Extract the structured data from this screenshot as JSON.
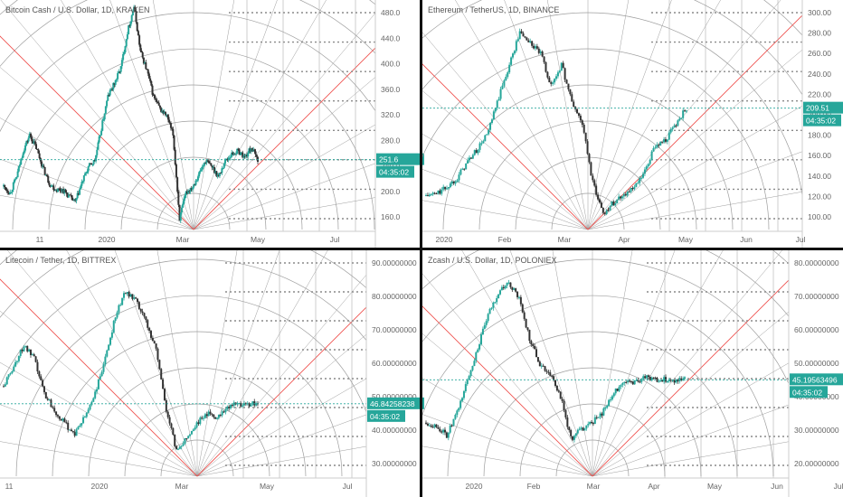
{
  "panels": [
    {
      "title": "Bitcoin Cash / U.S. Dollar, 1D, KRAKEN",
      "y_ticks": [
        "480.0",
        "440.0",
        "400.0",
        "360.0",
        "320.0",
        "280.0",
        "240.0",
        "200.0",
        "160.0"
      ],
      "x_ticks": [
        "11",
        "2020",
        "Mar",
        "May",
        "Jul"
      ],
      "last_price": "251.6",
      "countdown": "04:35:02"
    },
    {
      "title": "Ethereum / TetherUS, 1D, BINANCE",
      "y_ticks": [
        "300.00",
        "280.00",
        "260.00",
        "240.00",
        "220.00",
        "200.00",
        "180.00",
        "160.00",
        "140.00",
        "120.00",
        "100.00"
      ],
      "x_ticks": [
        "2020",
        "Feb",
        "Mar",
        "Apr",
        "May",
        "Jun",
        "Jul"
      ],
      "last_price": "209.51",
      "countdown": "04:35:02"
    },
    {
      "title": "Litecoin / Tether, 1D, BITTREX",
      "y_ticks": [
        "90.00000000",
        "80.00000000",
        "70.00000000",
        "60.00000000",
        "50.00000000",
        "40.00000000",
        "30.00000000"
      ],
      "x_ticks": [
        "11",
        "2020",
        "Mar",
        "May",
        "Jul"
      ],
      "last_price": "46.84258238",
      "countdown": "04:35:02"
    },
    {
      "title": "Zcash / U.S. Dollar, 1D, POLONIEX",
      "y_ticks": [
        "80.00000000",
        "70.00000000",
        "60.00000000",
        "50.00000000",
        "40.00000000",
        "30.00000000",
        "20.00000000"
      ],
      "x_ticks": [
        "2020",
        "Feb",
        "Mar",
        "Apr",
        "May",
        "Jun",
        "Jul"
      ],
      "last_price": "45.19563496",
      "countdown": "04:35:02"
    }
  ],
  "colors": {
    "up": "#26a69a",
    "down": "#333333",
    "fan": "#9e9e9e",
    "diagonal": "#ef5350",
    "dotted": "#8a8a8a",
    "price_tag": "#26a69a"
  },
  "chart_data": [
    {
      "type": "line",
      "title": "Bitcoin Cash / U.S. Dollar, 1D, KRAKEN",
      "series": [
        {
          "name": "",
          "x": [
            0,
            5,
            10,
            15,
            20,
            25,
            30,
            35,
            40,
            45,
            50,
            55,
            60,
            65,
            70,
            75,
            80,
            85,
            90,
            95,
            100,
            105,
            110,
            115,
            120,
            125,
            130,
            135,
            140,
            145,
            150,
            155,
            160,
            165,
            170,
            175,
            180,
            185,
            190,
            195,
            200,
            205,
            210,
            215,
            220,
            225,
            230,
            235,
            240,
            245,
            250,
            255,
            260,
            265,
            270,
            275,
            280,
            285
          ],
          "values": [
            210,
            200,
            225,
            265,
            290,
            270,
            240,
            215,
            205,
            205,
            195,
            185,
            215,
            240,
            250,
            300,
            350,
            370,
            395,
            450,
            490,
            420,
            390,
            350,
            330,
            320,
            290,
            160,
            200,
            210,
            230,
            250,
            240,
            225,
            250,
            260,
            265,
            255,
            270,
            251.6,
            251.6,
            251.6,
            251.6,
            251.6,
            251.6,
            251.6,
            251.6,
            251.6,
            251.6,
            251.6,
            251.6,
            251.6,
            251.6,
            251.6,
            251.6,
            251.6,
            251.6,
            251.6
          ]
        }
      ],
      "ylim": [
        140,
        500
      ],
      "last_value": 251.6
    },
    {
      "type": "line",
      "title": "Ethereum / TetherUS, 1D, BINANCE",
      "series": [
        {
          "name": "",
          "x": [
            0,
            1,
            2,
            3,
            4,
            5,
            6,
            7,
            8,
            9,
            10,
            11,
            12,
            13,
            14,
            15,
            16,
            17,
            18,
            19,
            20,
            21,
            22,
            23,
            24,
            25,
            26,
            27,
            28,
            29,
            30
          ],
          "values": [
            128,
            130,
            136,
            145,
            160,
            172,
            188,
            220,
            250,
            280,
            270,
            260,
            230,
            250,
            215,
            195,
            140,
            112,
            122,
            130,
            135,
            150,
            175,
            180,
            195,
            209.51,
            209.51,
            209.51,
            209.51,
            209.51,
            209.51
          ]
        }
      ],
      "ylim": [
        95,
        310
      ],
      "last_value": 209.51
    },
    {
      "type": "line",
      "title": "Litecoin / Tether, 1D, BITTREX",
      "series": [
        {
          "name": "",
          "x": [
            0,
            1,
            2,
            3,
            4,
            5,
            6,
            7,
            8,
            9,
            10,
            11,
            12,
            13,
            14,
            15,
            16,
            17,
            18,
            19,
            20,
            21,
            22,
            23,
            24,
            25
          ],
          "values": [
            52,
            58,
            64,
            60,
            50,
            45,
            41,
            38,
            43,
            50,
            60,
            73,
            80,
            77,
            71,
            63,
            45,
            33,
            37,
            41,
            44,
            43,
            46,
            46.84,
            46.84,
            46.84
          ]
        }
      ],
      "ylim": [
        25,
        92
      ],
      "last_value": 46.84258238
    },
    {
      "type": "line",
      "title": "Zcash / U.S. Dollar, 1D, POLONIEX",
      "series": [
        {
          "name": "",
          "x": [
            0,
            1,
            2,
            3,
            4,
            5,
            6,
            7,
            8,
            9,
            10,
            11,
            12,
            13,
            14,
            15,
            16,
            17,
            18,
            19,
            20,
            21,
            22,
            23,
            24,
            25
          ],
          "values": [
            32,
            31,
            28,
            35,
            45,
            55,
            65,
            72,
            75,
            70,
            58,
            50,
            47,
            40,
            27,
            30,
            32,
            35,
            40,
            45,
            44,
            46,
            45.2,
            45.2,
            45.2,
            45.2
          ]
        }
      ],
      "ylim": [
        15,
        85
      ],
      "last_value": 45.19563496
    }
  ]
}
